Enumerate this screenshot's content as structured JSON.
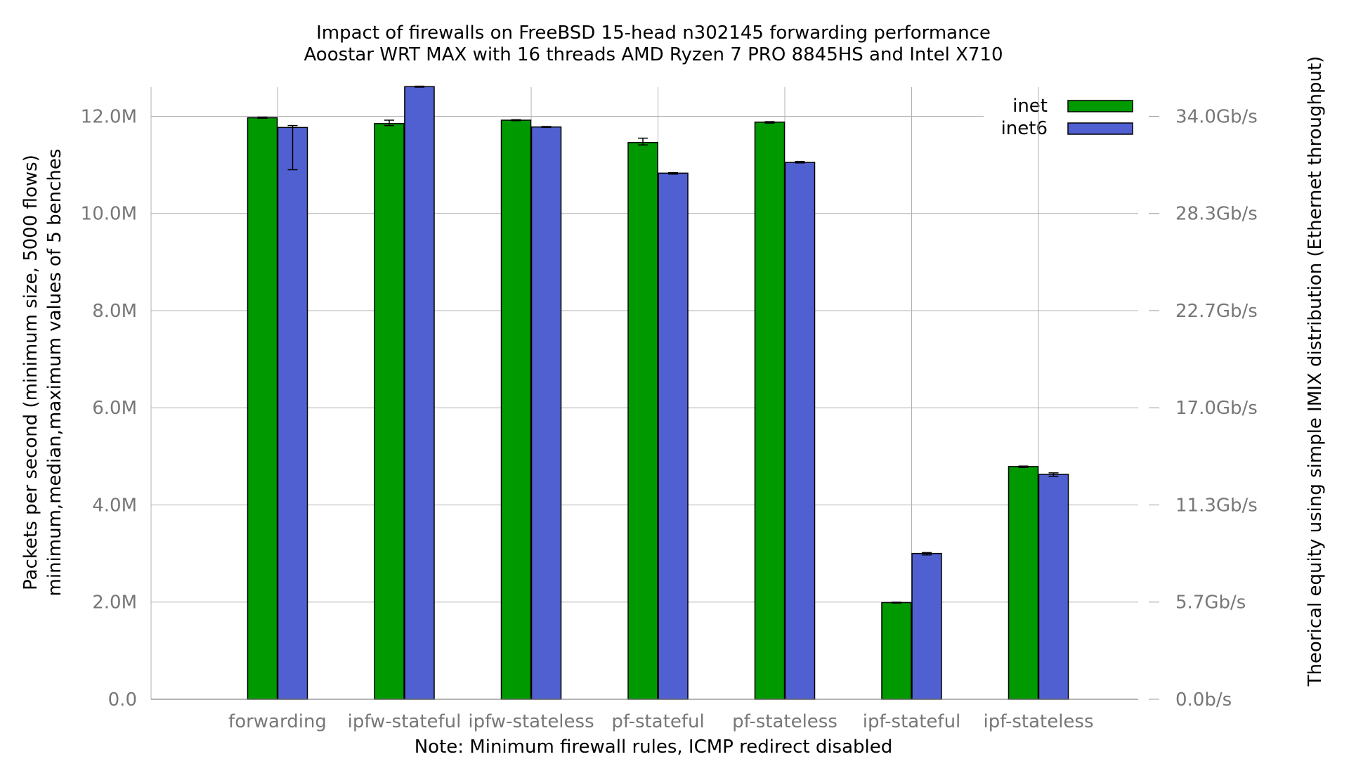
{
  "chart_data": {
    "type": "bar",
    "title": "Impact of firewalls on FreeBSD 15-head n302145 forwarding performance",
    "subtitle": "Aoostar WRT MAX with 16 threads AMD Ryzen 7 PRO 8845HS and Intel X710",
    "xlabel": "Note: Minimum firewall rules, ICMP redirect disabled",
    "ylabel_line1": "Packets per second (minimum size, 5000 flows)",
    "ylabel_line2": "minimum,median,maximum values of 5 benches",
    "y2label": "Theorical equity using simple IMIX distribution (Ethernet throughput)",
    "ylim": [
      0,
      12.6
    ],
    "unit": "M",
    "categories": [
      "forwarding",
      "ipfw-stateful",
      "ipfw-stateless",
      "pf-stateful",
      "pf-stateless",
      "ipf-stateful",
      "ipf-stateless"
    ],
    "y_ticks": [
      {
        "value": 0,
        "label": "0.0"
      },
      {
        "value": 2,
        "label": "2.0M"
      },
      {
        "value": 4,
        "label": "4.0M"
      },
      {
        "value": 6,
        "label": "6.0M"
      },
      {
        "value": 8,
        "label": "8.0M"
      },
      {
        "value": 10,
        "label": "10.0M"
      },
      {
        "value": 12,
        "label": "12.0M"
      }
    ],
    "y2_ticks": [
      {
        "value": 0,
        "label": "0.0b/s"
      },
      {
        "value": 2,
        "label": "5.7Gb/s"
      },
      {
        "value": 4,
        "label": "11.3Gb/s"
      },
      {
        "value": 6,
        "label": "17.0Gb/s"
      },
      {
        "value": 8,
        "label": "22.7Gb/s"
      },
      {
        "value": 10,
        "label": "28.3Gb/s"
      },
      {
        "value": 12,
        "label": "34.0Gb/s"
      }
    ],
    "series": [
      {
        "name": "inet",
        "color": "#009900",
        "values": [
          11.97,
          11.85,
          11.92,
          11.46,
          11.88,
          1.99,
          4.79
        ],
        "min": [
          11.96,
          11.81,
          11.91,
          11.41,
          11.86,
          1.98,
          4.77
        ],
        "max": [
          11.98,
          11.92,
          11.93,
          11.55,
          11.89,
          2.0,
          4.8
        ]
      },
      {
        "name": "inet6",
        "color": "#5060D0",
        "values": [
          11.77,
          12.61,
          11.78,
          10.83,
          11.05,
          3.0,
          4.63
        ],
        "min": [
          10.9,
          12.6,
          11.77,
          10.81,
          11.04,
          2.97,
          4.59
        ],
        "max": [
          11.81,
          12.62,
          11.79,
          10.84,
          11.07,
          3.02,
          4.66
        ]
      }
    ],
    "grid": true,
    "legend_position": "top-right"
  }
}
